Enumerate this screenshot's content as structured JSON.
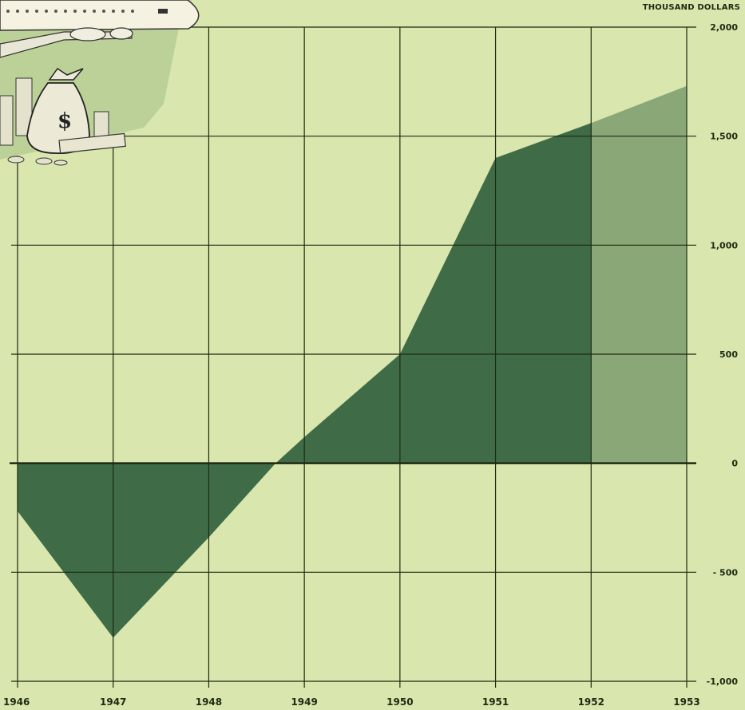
{
  "chart_data": {
    "type": "area",
    "unit_label": "THOUSAND DOLLARS",
    "x": [
      1946,
      1947,
      1948,
      1949,
      1950,
      1951,
      1952,
      1953
    ],
    "x_tick_labels": [
      "1946",
      "1947",
      "1948",
      "1949",
      "1950",
      "1951",
      "1952",
      "1953"
    ],
    "y_tick_values": [
      2000,
      1500,
      1000,
      500,
      0,
      -500,
      -1000
    ],
    "y_tick_labels": [
      "2,000",
      "1,500",
      "1,000",
      "500",
      "0",
      "- 500",
      "-1,000"
    ],
    "ylim": [
      -1000,
      2000
    ],
    "xlim": [
      1946,
      1953
    ],
    "series": [
      {
        "points": [
          [
            1946,
            -220
          ],
          [
            1947,
            -800
          ],
          [
            1948,
            -340
          ],
          [
            1948.7,
            0
          ],
          [
            1949,
            120
          ],
          [
            1950,
            500
          ],
          [
            1951,
            1400
          ],
          [
            1952,
            1560
          ]
        ],
        "color": "#3f6b47"
      },
      {
        "points": [
          [
            1952,
            1560
          ],
          [
            1953,
            1730
          ]
        ],
        "color": "#8aa777"
      }
    ],
    "grid": true,
    "illustration": "airplane-and-money-bag"
  },
  "colors": {
    "background": "#d9e6ad",
    "grid": "#1d2a12",
    "area_dark": "#3f6b47",
    "area_light": "#8aa777"
  }
}
